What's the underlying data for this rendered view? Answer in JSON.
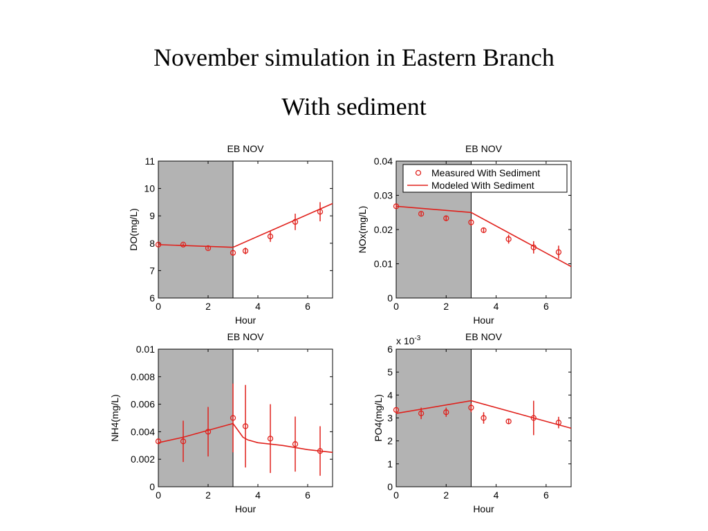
{
  "slide": {
    "title": "November simulation in Eastern Branch",
    "subtitle": "With sediment"
  },
  "colors": {
    "series": "#e0201b",
    "shaded": "#b3b3b3",
    "axis": "#000000"
  },
  "legend": {
    "entries": [
      "Measured With Sediment",
      "Modeled With Sediment"
    ],
    "placement": "top-right"
  },
  "chart_data": [
    {
      "type": "line",
      "title": "EB NOV",
      "xlabel": "Hour",
      "ylabel": "DO(mg/L)",
      "xlim": [
        0,
        7
      ],
      "ylim": [
        6,
        11
      ],
      "xticks": [
        "0",
        "2",
        "4",
        "6"
      ],
      "yticks": [
        "6",
        "7",
        "8",
        "9",
        "10",
        "11"
      ],
      "shaded_x": [
        0,
        3
      ],
      "grid": false,
      "series": [
        {
          "kind": "measured",
          "x": [
            0,
            1,
            2,
            3,
            3.5,
            4.5,
            5.5,
            6.5
          ],
          "y": [
            7.95,
            7.95,
            7.82,
            7.65,
            7.72,
            8.25,
            8.78,
            9.15
          ],
          "err": [
            0.05,
            0.05,
            0.05,
            0.1,
            0.12,
            0.2,
            0.3,
            0.35
          ]
        },
        {
          "kind": "modeled",
          "x": [
            0,
            3,
            7
          ],
          "y": [
            7.95,
            7.85,
            9.45
          ]
        }
      ]
    },
    {
      "type": "line",
      "title": "EB NOV",
      "xlabel": "Hour",
      "ylabel": "NOx(mg/L)",
      "xlim": [
        0,
        7
      ],
      "ylim": [
        0,
        0.04
      ],
      "xticks": [
        "0",
        "2",
        "4",
        "6"
      ],
      "yticks": [
        "0",
        "0.01",
        "0.02",
        "0.03",
        "0.04"
      ],
      "shaded_x": [
        0,
        3
      ],
      "grid": false,
      "legend": true,
      "series": [
        {
          "kind": "measured",
          "x": [
            0,
            1,
            2,
            3,
            3.5,
            4.5,
            5.5,
            6.5
          ],
          "y": [
            0.0268,
            0.0246,
            0.0233,
            0.0221,
            0.0198,
            0.0172,
            0.0148,
            0.0134
          ],
          "err": [
            0.0005,
            0.0005,
            0.0008,
            0.001,
            0.0008,
            0.0013,
            0.0018,
            0.0019
          ]
        },
        {
          "kind": "modeled",
          "x": [
            0,
            3,
            7
          ],
          "y": [
            0.0268,
            0.025,
            0.0092
          ]
        }
      ]
    },
    {
      "type": "line",
      "title": "EB NOV",
      "xlabel": "Hour",
      "ylabel": "NH4(mg/L)",
      "xlim": [
        0,
        7
      ],
      "ylim": [
        0,
        0.01
      ],
      "xticks": [
        "0",
        "2",
        "4",
        "6"
      ],
      "yticks": [
        "0",
        "0.002",
        "0.004",
        "0.006",
        "0.008",
        "0.01"
      ],
      "shaded_x": [
        0,
        3
      ],
      "grid": false,
      "series": [
        {
          "kind": "measured",
          "x": [
            0,
            1,
            2,
            3,
            3.5,
            4.5,
            5.5,
            6.5
          ],
          "y": [
            0.0033,
            0.0033,
            0.004,
            0.005,
            0.0044,
            0.0035,
            0.0031,
            0.0026
          ],
          "err": [
            0.0001,
            0.0015,
            0.0018,
            0.0025,
            0.003,
            0.0025,
            0.002,
            0.0018
          ]
        },
        {
          "kind": "modeled",
          "x": [
            0,
            1,
            2,
            3,
            3.2,
            3.4,
            3.6,
            4,
            5,
            6,
            7
          ],
          "y": [
            0.0032,
            0.0036,
            0.0041,
            0.0046,
            0.0041,
            0.0036,
            0.0034,
            0.0032,
            0.003,
            0.0027,
            0.0025
          ]
        }
      ]
    },
    {
      "type": "line",
      "title": "EB NOV",
      "xlabel": "Hour",
      "ylabel": "PO4(mg/L)",
      "multiplier": "x 10",
      "multiplier_exponent": "-3",
      "xlim": [
        0,
        7
      ],
      "ylim": [
        0,
        6
      ],
      "xticks": [
        "0",
        "2",
        "4",
        "6"
      ],
      "yticks": [
        "0",
        "1",
        "2",
        "3",
        "4",
        "5",
        "6"
      ],
      "shaded_x": [
        0,
        3
      ],
      "grid": false,
      "series": [
        {
          "kind": "measured",
          "x": [
            0,
            1,
            2,
            3,
            3.5,
            4.5,
            5.5,
            6.5
          ],
          "y": [
            3.35,
            3.2,
            3.25,
            3.45,
            3.0,
            2.85,
            3.0,
            2.8
          ],
          "err": [
            0.1,
            0.25,
            0.2,
            0.2,
            0.25,
            0.1,
            0.75,
            0.25
          ]
        },
        {
          "kind": "modeled",
          "x": [
            0,
            3,
            7
          ],
          "y": [
            3.2,
            3.75,
            2.55
          ]
        }
      ]
    }
  ]
}
